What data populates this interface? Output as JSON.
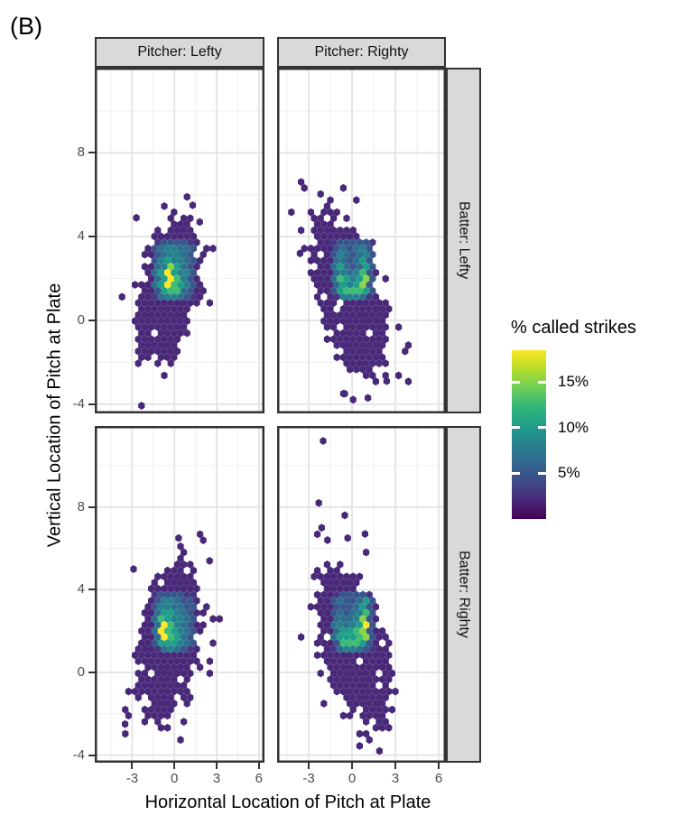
{
  "figure_label": "(B)",
  "theme": {
    "strip_bg": "#d9d9d9",
    "strip_border": "#333333",
    "panel_border": "#333333",
    "grid_major": "#e3e3e3",
    "grid_minor": "#efefef",
    "tick_color": "#333333",
    "tick_label_color": "#4d4d4d",
    "title_color": "#000000"
  },
  "chart_data": {
    "type": "heatmap",
    "subtype": "hexbin-density",
    "xlabel": "Horizontal Location of Pitch at Plate",
    "ylabel": "Vertical Location of Pitch at Plate",
    "facet_cols": [
      "Pitcher: Lefty",
      "Pitcher: Righty"
    ],
    "facet_rows": [
      "Batter: Lefty",
      "Batter: Righty"
    ],
    "x_ticks": [
      -3,
      0,
      3,
      6
    ],
    "y_ticks": [
      -4,
      0,
      4,
      8
    ],
    "x_minor_ticks": [
      -4.5,
      -1.5,
      1.5,
      4.5
    ],
    "y_minor_ticks": [
      -2,
      2,
      6,
      10
    ],
    "xlim": [
      -5.6,
      6.5
    ],
    "ylim": [
      -4.4,
      12.1
    ],
    "legend": {
      "title": "% called strikes",
      "tick_labels": [
        "15%",
        "10%",
        "5%"
      ],
      "tick_values": [
        15,
        10,
        5
      ],
      "scale_range_pct": [
        0,
        18.5
      ],
      "colormap": "viridis",
      "viridis_stops": [
        "#440154",
        "#482878",
        "#3e4a89",
        "#31688e",
        "#26828e",
        "#1f9e89",
        "#35b779",
        "#6ece58",
        "#b5de2b",
        "#fde725"
      ]
    },
    "hex_base_pct": 2,
    "hex_base_color": "#482878",
    "hex_level_pct": [
      3,
      5,
      6.5,
      8,
      10,
      12.5,
      15,
      17.5
    ],
    "hex_level_colors": [
      "#453781",
      "#39568c",
      "#2d708e",
      "#27808e",
      "#1f9e89",
      "#3fbc73",
      "#8bd646",
      "#fde725"
    ],
    "panels": [
      {
        "pitcher": "Lefty",
        "batter": "Lefty",
        "cloud": {
          "cx": -0.4,
          "cy": 1.4,
          "rx": 2.3,
          "ry": 4.1,
          "angle_deg": -19
        },
        "core": {
          "x": [
            -1.45,
            1.45
          ],
          "y": [
            0.95,
            3.85
          ],
          "grid": [
            [
              0,
              1,
              1,
              1,
              1,
              1,
              0
            ],
            [
              1,
              2,
              3,
              3,
              2,
              2,
              1
            ],
            [
              1,
              3,
              4,
              3,
              3,
              2,
              1
            ],
            [
              2,
              3,
              6,
              4,
              3,
              2,
              1
            ],
            [
              2,
              4,
              7,
              4,
              3,
              3,
              1
            ],
            [
              2,
              4,
              7,
              5,
              4,
              3,
              1
            ],
            [
              1,
              4,
              5,
              5,
              4,
              2,
              1
            ],
            [
              0,
              2,
              3,
              3,
              2,
              1,
              0
            ]
          ]
        },
        "outliers": [
          [
            0.9,
            5.9
          ],
          [
            -2.7,
            4.9
          ],
          [
            1.8,
            4.7
          ],
          [
            1.3,
            5.5
          ]
        ]
      },
      {
        "pitcher": "Righty",
        "batter": "Lefty",
        "cloud": {
          "cx": -0.25,
          "cy": 1.25,
          "rx": 2.25,
          "ry": 4.7,
          "angle_deg": 28
        },
        "core": {
          "x": [
            -1.45,
            1.45
          ],
          "y": [
            0.95,
            3.85
          ],
          "grid": [
            [
              0,
              1,
              1,
              1,
              1,
              1,
              0
            ],
            [
              1,
              3,
              2,
              1,
              2,
              3,
              1
            ],
            [
              2,
              4,
              2,
              1,
              2,
              4,
              1
            ],
            [
              2,
              4,
              2,
              1,
              2,
              4,
              1
            ],
            [
              2,
              5,
              3,
              2,
              3,
              5,
              1
            ],
            [
              2,
              5,
              4,
              3,
              4,
              6,
              1
            ],
            [
              1,
              4,
              5,
              5,
              5,
              4,
              1
            ],
            [
              0,
              2,
              3,
              3,
              3,
              2,
              0
            ]
          ]
        },
        "outliers": [
          [
            1.1,
            -3.7
          ],
          [
            -0.5,
            -3.5
          ],
          [
            2.4,
            -2.9
          ],
          [
            -3.6,
            3.2
          ]
        ]
      },
      {
        "pitcher": "Lefty",
        "batter": "Righty",
        "cloud": {
          "cx": -0.35,
          "cy": 1.55,
          "rx": 2.4,
          "ry": 4.5,
          "angle_deg": -17
        },
        "core": {
          "x": [
            -1.45,
            1.45
          ],
          "y": [
            0.95,
            3.85
          ],
          "grid": [
            [
              0,
              1,
              1,
              1,
              1,
              0,
              0
            ],
            [
              1,
              3,
              3,
              2,
              2,
              1,
              1
            ],
            [
              2,
              4,
              4,
              3,
              2,
              2,
              1
            ],
            [
              2,
              5,
              4,
              3,
              3,
              2,
              1
            ],
            [
              2,
              7,
              5,
              3,
              3,
              2,
              1
            ],
            [
              2,
              7,
              5,
              4,
              3,
              2,
              1
            ],
            [
              1,
              4,
              4,
              4,
              3,
              2,
              1
            ],
            [
              0,
              2,
              3,
              2,
              2,
              1,
              0
            ]
          ]
        },
        "outliers": [
          [
            2.5,
            5.4
          ],
          [
            -3.5,
            -2.5
          ],
          [
            0.3,
            6.5
          ],
          [
            -2.9,
            5.0
          ]
        ]
      },
      {
        "pitcher": "Righty",
        "batter": "Righty",
        "cloud": {
          "cx": 0.05,
          "cy": 1.25,
          "rx": 2.45,
          "ry": 4.75,
          "angle_deg": 26
        },
        "core": {
          "x": [
            -1.45,
            1.45
          ],
          "y": [
            0.95,
            3.85
          ],
          "grid": [
            [
              0,
              1,
              1,
              1,
              1,
              1,
              0
            ],
            [
              1,
              2,
              1,
              1,
              2,
              4,
              1
            ],
            [
              1,
              2,
              1,
              2,
              3,
              5,
              1
            ],
            [
              2,
              3,
              2,
              2,
              3,
              6,
              1
            ],
            [
              2,
              3,
              2,
              3,
              4,
              7,
              1
            ],
            [
              2,
              4,
              4,
              4,
              5,
              6,
              1
            ],
            [
              1,
              4,
              5,
              5,
              5,
              4,
              1
            ],
            [
              0,
              2,
              3,
              3,
              2,
              1,
              0
            ]
          ]
        },
        "outliers": [
          [
            -2.0,
            11.2
          ],
          [
            -2.3,
            8.2
          ],
          [
            -0.5,
            7.6
          ],
          [
            -2.1,
            7.0
          ],
          [
            0.9,
            6.7
          ],
          [
            -1.7,
            6.4
          ],
          [
            -0.3,
            6.5
          ],
          [
            1.9,
            -3.8
          ]
        ]
      }
    ]
  }
}
